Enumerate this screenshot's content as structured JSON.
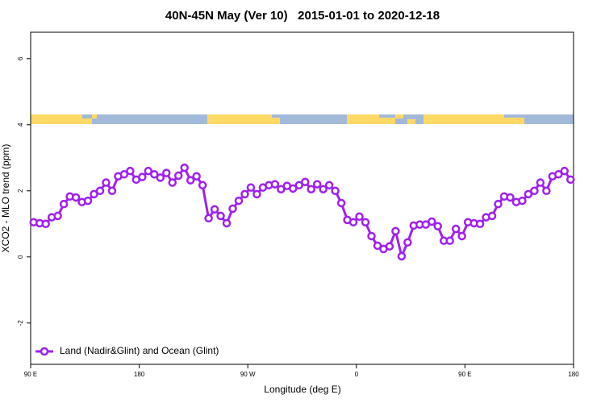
{
  "chart_data": {
    "type": "line",
    "title": "40N-45N May (Ver 10)   2015-01-01 to 2020-12-18",
    "x_label": "Longitude (deg E)",
    "y_label": "XCO2 - MLO trend (ppm)",
    "xlim": [
      90,
      540
    ],
    "ylim": [
      -3.25,
      6.8
    ],
    "xticks": [
      {
        "value": 90,
        "label": "90 E"
      },
      180,
      {
        "value": 270,
        "label": "90 W"
      },
      {
        "value": 360,
        "label": "0"
      },
      {
        "value": 450,
        "label": "90 E"
      },
      {
        "value": 540,
        "label": "180"
      }
    ],
    "yticks": [
      -2,
      0,
      2,
      4,
      6
    ],
    "legend": "bottom-left",
    "x": [
      92.5,
      97.5,
      102.5,
      107.5,
      112.5,
      117.5,
      122.5,
      127.5,
      132.5,
      137.5,
      142.5,
      147.5,
      152.5,
      157.5,
      162.5,
      167.5,
      172.5,
      177.5,
      182.5,
      187.5,
      192.5,
      197.5,
      202.5,
      207.5,
      212.5,
      217.5,
      222.5,
      227.5,
      232.5,
      237.5,
      242.5,
      247.5,
      252.5,
      257.5,
      262.5,
      267.5,
      272.5,
      277.5,
      282.5,
      287.5,
      292.5,
      297.5,
      302.5,
      307.5,
      312.5,
      317.5,
      322.5,
      327.5,
      332.5,
      337.5,
      342.5,
      347.5,
      352.5,
      357.5,
      362.5,
      367.5,
      372.5,
      377.5,
      382.5,
      387.5,
      392.5,
      397.5,
      402.5,
      407.5,
      412.5,
      417.5,
      422.5,
      427.5,
      432.5,
      437.5,
      442.5,
      447.5,
      452.5,
      457.5,
      462.5,
      467.5,
      472.5,
      477.5,
      482.5,
      487.5,
      492.5,
      497.5,
      502.5,
      507.5,
      512.5,
      517.5,
      522.5,
      527.5,
      532.5,
      537.5
    ],
    "series": [
      {
        "name": "Land (Nadir&Glint) and Ocean (Glint)",
        "color": "#a020f0",
        "values": [
          1.05,
          1.02,
          1.0,
          1.2,
          1.24,
          1.6,
          1.83,
          1.8,
          1.66,
          1.7,
          1.9,
          2.0,
          2.25,
          2.0,
          2.44,
          2.5,
          2.6,
          2.34,
          2.42,
          2.6,
          2.5,
          2.4,
          2.54,
          2.25,
          2.46,
          2.7,
          2.32,
          2.44,
          2.17,
          1.17,
          1.44,
          1.24,
          1.02,
          1.46,
          1.7,
          1.9,
          2.1,
          1.9,
          2.1,
          2.17,
          2.2,
          2.05,
          2.15,
          2.07,
          2.17,
          2.27,
          2.05,
          2.2,
          2.05,
          2.17,
          2.0,
          1.63,
          1.12,
          1.05,
          1.22,
          1.05,
          0.63,
          0.34,
          0.24,
          0.32,
          0.78,
          0.02,
          0.44,
          0.95,
          0.98,
          0.98,
          1.07,
          0.93,
          0.49,
          0.49,
          0.85,
          0.63,
          1.05,
          1.02,
          1.0,
          1.2,
          1.24,
          1.6,
          1.83,
          1.8,
          1.66,
          1.7,
          1.9,
          2.0,
          2.25,
          2.0,
          2.44,
          2.5,
          2.6,
          2.34
        ]
      }
    ]
  }
}
